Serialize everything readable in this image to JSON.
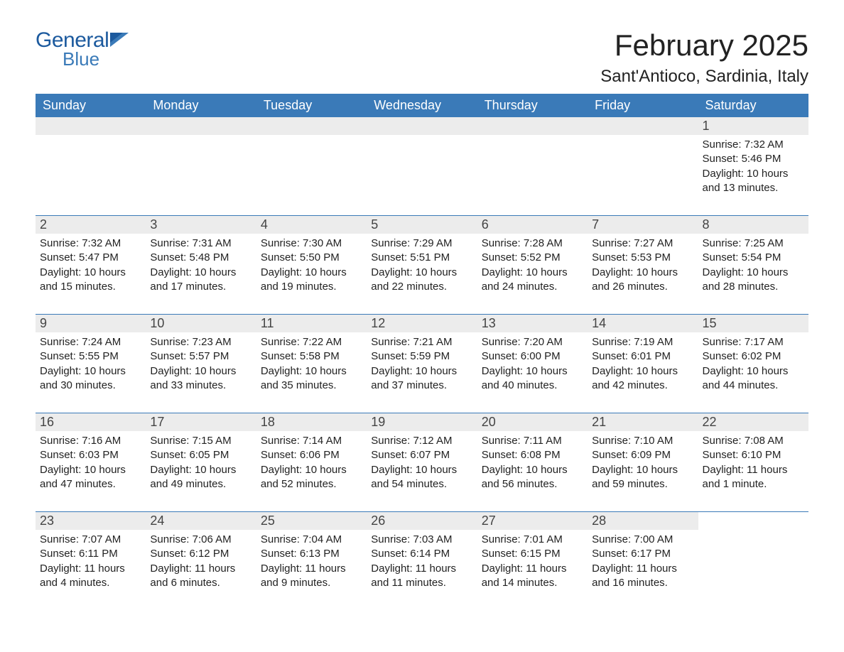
{
  "logo": {
    "general": "General",
    "blue": "Blue"
  },
  "title": "February 2025",
  "location": "Sant'Antioco, Sardinia, Italy",
  "colors": {
    "header_bg": "#3a7ab8",
    "header_text": "#ffffff",
    "daynum_bg": "#ececec",
    "row_border": "#3a7ab8",
    "logo_general": "#1c5a9e",
    "logo_blue": "#3a7ab8",
    "text": "#222222",
    "background": "#ffffff"
  },
  "fonts": {
    "title_size": 42,
    "location_size": 24,
    "header_size": 18,
    "daynum_size": 18,
    "detail_size": 15,
    "logo_general_size": 30,
    "logo_blue_size": 26
  },
  "weekdays": [
    "Sunday",
    "Monday",
    "Tuesday",
    "Wednesday",
    "Thursday",
    "Friday",
    "Saturday"
  ],
  "labels": {
    "sunrise": "Sunrise:",
    "sunset": "Sunset:",
    "daylight": "Daylight:"
  },
  "weeks": [
    [
      {
        "blank": true
      },
      {
        "blank": true
      },
      {
        "blank": true
      },
      {
        "blank": true
      },
      {
        "blank": true
      },
      {
        "blank": true
      },
      {
        "day": "1",
        "sunrise": "7:32 AM",
        "sunset": "5:46 PM",
        "daylight": "10 hours and 13 minutes."
      }
    ],
    [
      {
        "day": "2",
        "sunrise": "7:32 AM",
        "sunset": "5:47 PM",
        "daylight": "10 hours and 15 minutes."
      },
      {
        "day": "3",
        "sunrise": "7:31 AM",
        "sunset": "5:48 PM",
        "daylight": "10 hours and 17 minutes."
      },
      {
        "day": "4",
        "sunrise": "7:30 AM",
        "sunset": "5:50 PM",
        "daylight": "10 hours and 19 minutes."
      },
      {
        "day": "5",
        "sunrise": "7:29 AM",
        "sunset": "5:51 PM",
        "daylight": "10 hours and 22 minutes."
      },
      {
        "day": "6",
        "sunrise": "7:28 AM",
        "sunset": "5:52 PM",
        "daylight": "10 hours and 24 minutes."
      },
      {
        "day": "7",
        "sunrise": "7:27 AM",
        "sunset": "5:53 PM",
        "daylight": "10 hours and 26 minutes."
      },
      {
        "day": "8",
        "sunrise": "7:25 AM",
        "sunset": "5:54 PM",
        "daylight": "10 hours and 28 minutes."
      }
    ],
    [
      {
        "day": "9",
        "sunrise": "7:24 AM",
        "sunset": "5:55 PM",
        "daylight": "10 hours and 30 minutes."
      },
      {
        "day": "10",
        "sunrise": "7:23 AM",
        "sunset": "5:57 PM",
        "daylight": "10 hours and 33 minutes."
      },
      {
        "day": "11",
        "sunrise": "7:22 AM",
        "sunset": "5:58 PM",
        "daylight": "10 hours and 35 minutes."
      },
      {
        "day": "12",
        "sunrise": "7:21 AM",
        "sunset": "5:59 PM",
        "daylight": "10 hours and 37 minutes."
      },
      {
        "day": "13",
        "sunrise": "7:20 AM",
        "sunset": "6:00 PM",
        "daylight": "10 hours and 40 minutes."
      },
      {
        "day": "14",
        "sunrise": "7:19 AM",
        "sunset": "6:01 PM",
        "daylight": "10 hours and 42 minutes."
      },
      {
        "day": "15",
        "sunrise": "7:17 AM",
        "sunset": "6:02 PM",
        "daylight": "10 hours and 44 minutes."
      }
    ],
    [
      {
        "day": "16",
        "sunrise": "7:16 AM",
        "sunset": "6:03 PM",
        "daylight": "10 hours and 47 minutes."
      },
      {
        "day": "17",
        "sunrise": "7:15 AM",
        "sunset": "6:05 PM",
        "daylight": "10 hours and 49 minutes."
      },
      {
        "day": "18",
        "sunrise": "7:14 AM",
        "sunset": "6:06 PM",
        "daylight": "10 hours and 52 minutes."
      },
      {
        "day": "19",
        "sunrise": "7:12 AM",
        "sunset": "6:07 PM",
        "daylight": "10 hours and 54 minutes."
      },
      {
        "day": "20",
        "sunrise": "7:11 AM",
        "sunset": "6:08 PM",
        "daylight": "10 hours and 56 minutes."
      },
      {
        "day": "21",
        "sunrise": "7:10 AM",
        "sunset": "6:09 PM",
        "daylight": "10 hours and 59 minutes."
      },
      {
        "day": "22",
        "sunrise": "7:08 AM",
        "sunset": "6:10 PM",
        "daylight": "11 hours and 1 minute."
      }
    ],
    [
      {
        "day": "23",
        "sunrise": "7:07 AM",
        "sunset": "6:11 PM",
        "daylight": "11 hours and 4 minutes."
      },
      {
        "day": "24",
        "sunrise": "7:06 AM",
        "sunset": "6:12 PM",
        "daylight": "11 hours and 6 minutes."
      },
      {
        "day": "25",
        "sunrise": "7:04 AM",
        "sunset": "6:13 PM",
        "daylight": "11 hours and 9 minutes."
      },
      {
        "day": "26",
        "sunrise": "7:03 AM",
        "sunset": "6:14 PM",
        "daylight": "11 hours and 11 minutes."
      },
      {
        "day": "27",
        "sunrise": "7:01 AM",
        "sunset": "6:15 PM",
        "daylight": "11 hours and 14 minutes."
      },
      {
        "day": "28",
        "sunrise": "7:00 AM",
        "sunset": "6:17 PM",
        "daylight": "11 hours and 16 minutes."
      },
      {
        "blank": true
      }
    ]
  ]
}
